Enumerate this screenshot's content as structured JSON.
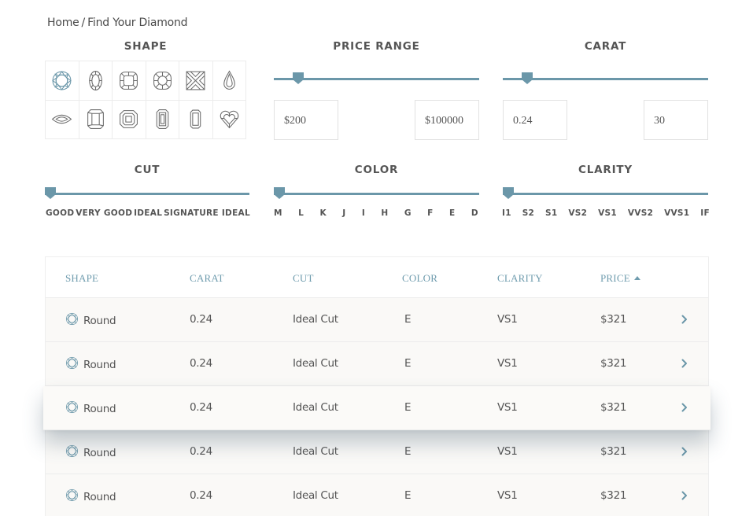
{
  "breadcrumb": {
    "home": "Home",
    "separator": "/",
    "current": "Find Your Diamond"
  },
  "filters": {
    "shape": {
      "title": "SHAPE",
      "selected": "round",
      "options": [
        "round",
        "oval",
        "cushion",
        "cushion-square",
        "princess",
        "pear",
        "marquise",
        "radiant",
        "asscher",
        "emerald",
        "emerald-long",
        "heart"
      ]
    },
    "price": {
      "title": "PRICE RANGE",
      "min": "$200",
      "max": "$100000",
      "slider_position": 0.12
    },
    "carat": {
      "title": "CARAT",
      "min": "0.24",
      "max": "30",
      "slider_position": 0.12
    },
    "cut": {
      "title": "CUT",
      "options": [
        "GOOD",
        "VERY GOOD",
        "IDEAL",
        "SIGNATURE IDEAL"
      ],
      "slider_position": 0.02
    },
    "color": {
      "title": "COLOR",
      "options": [
        "M",
        "L",
        "K",
        "J",
        "I",
        "H",
        "G",
        "F",
        "E",
        "D"
      ],
      "slider_position": 0.02
    },
    "clarity": {
      "title": "CLARITY",
      "options": [
        "I1",
        "S2",
        "S1",
        "VS2",
        "VS1",
        "VVS2",
        "VVS1",
        "IF"
      ],
      "slider_position": 0.02
    }
  },
  "results": {
    "columns": {
      "shape": "SHAPE",
      "carat": "CARAT",
      "cut": "CUT",
      "color": "COLOR",
      "clarity": "CLARITY",
      "price": "PRICE"
    },
    "sort": {
      "column": "price",
      "direction": "ascending"
    },
    "rows": [
      {
        "shape": "Round",
        "carat": "0.24",
        "cut": "Ideal Cut",
        "color": "E",
        "clarity": "VS1",
        "price": "$321"
      },
      {
        "shape": "Round",
        "carat": "0.24",
        "cut": "Ideal Cut",
        "color": "E",
        "clarity": "VS1",
        "price": "$321"
      },
      {
        "shape": "Round",
        "carat": "0.24",
        "cut": "Ideal Cut",
        "color": "E",
        "clarity": "VS1",
        "price": "$321"
      },
      {
        "shape": "Round",
        "carat": "0.24",
        "cut": "Ideal Cut",
        "color": "E",
        "clarity": "VS1",
        "price": "$321"
      },
      {
        "shape": "Round",
        "carat": "0.24",
        "cut": "Ideal Cut",
        "color": "E",
        "clarity": "VS1",
        "price": "$321"
      }
    ],
    "highlighted_row": 2
  },
  "colors": {
    "accent": "#6b97a9",
    "header_text": "#6f9cae",
    "text": "#555555",
    "row_bg": "#faf9f7",
    "border": "#ececec"
  }
}
